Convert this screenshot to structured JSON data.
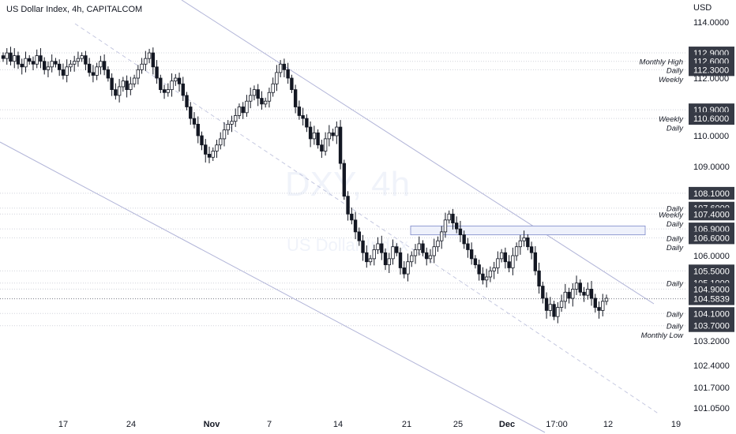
{
  "header": {
    "title": "US Dollar Index, 4h, CAPITALCOM",
    "currency": "USD"
  },
  "watermark": {
    "symbol": "DXY, 4h",
    "name": "US Dollar Index"
  },
  "chart_data": {
    "type": "candlestick",
    "title": "US Dollar Index, 4h, CAPITALCOM",
    "ylabel": "USD",
    "ylim": [
      100.9,
      114.2
    ],
    "grid": false,
    "y_ticks": [
      "114.0000",
      "112.0000",
      "110.0000",
      "109.0000",
      "106.0000",
      "103.2000",
      "102.4000",
      "101.7000",
      "101.0500"
    ],
    "x_ticks": [
      "17",
      "24",
      "Nov",
      "7",
      "14",
      "21",
      "25",
      "Dec",
      "17:00",
      "12",
      "19"
    ],
    "levels": [
      {
        "value": 112.9,
        "label": "112.9000",
        "tags": []
      },
      {
        "value": 112.6,
        "label": "112.6000",
        "tags": [
          "Monthly High"
        ]
      },
      {
        "value": 112.3,
        "label": "112.3000",
        "tags": [
          "Daily",
          "Weekly"
        ]
      },
      {
        "value": 110.9,
        "label": "110.9000",
        "tags": []
      },
      {
        "value": 110.6,
        "label": "110.6000",
        "tags": [
          "Weekly",
          "Daily"
        ]
      },
      {
        "value": 108.1,
        "label": "108.1000",
        "tags": []
      },
      {
        "value": 107.6,
        "label": "107.6000",
        "tags": [
          "Daily"
        ]
      },
      {
        "value": 107.4,
        "label": "107.4000",
        "tags": [
          "Weekly",
          "Daily"
        ]
      },
      {
        "value": 106.9,
        "label": "106.9000",
        "tags": []
      },
      {
        "value": 106.6,
        "label": "106.6000",
        "tags": [
          "Daily",
          "Daily"
        ]
      },
      {
        "value": 105.5,
        "label": "105.5000",
        "tags": []
      },
      {
        "value": 105.1,
        "label": "105.1000",
        "tags": [
          "Daily"
        ]
      },
      {
        "value": 104.9,
        "label": "104.9000",
        "tags": []
      },
      {
        "value": 104.1,
        "label": "104.1000",
        "tags": [
          "Daily"
        ]
      },
      {
        "value": 103.7,
        "label": "103.7000",
        "tags": [
          "Daily",
          "Monthly Low"
        ]
      }
    ],
    "last_price": {
      "value": 104.5839,
      "label": "104.5839"
    },
    "zone": {
      "x_start": "21",
      "x_end": "12",
      "y_low": 106.7,
      "y_high": 107.0
    },
    "series_close": [
      112.7,
      112.9,
      112.6,
      112.8,
      112.5,
      112.4,
      112.7,
      112.6,
      112.5,
      112.8,
      112.6,
      112.3,
      112.4,
      112.6,
      112.5,
      112.3,
      112.1,
      112.4,
      112.5,
      112.6,
      112.7,
      112.8,
      112.5,
      112.2,
      112.1,
      112.4,
      112.6,
      112.3,
      112.0,
      111.6,
      111.4,
      111.7,
      111.9,
      111.6,
      111.8,
      112.0,
      112.3,
      112.5,
      112.7,
      112.9,
      112.4,
      112.0,
      111.6,
      111.5,
      111.6,
      111.9,
      112.0,
      111.8,
      111.4,
      111.0,
      110.6,
      110.4,
      110.0,
      109.7,
      109.4,
      109.3,
      109.5,
      109.7,
      109.9,
      110.2,
      110.4,
      110.5,
      110.7,
      111.0,
      110.8,
      111.2,
      111.4,
      111.6,
      111.3,
      111.1,
      111.2,
      111.5,
      111.8,
      112.2,
      112.5,
      112.3,
      112.0,
      111.6,
      111.0,
      110.7,
      110.6,
      110.3,
      109.9,
      110.1,
      109.7,
      109.5,
      109.9,
      110.1,
      110.0,
      110.3,
      109.1,
      108.0,
      107.4,
      107.2,
      106.8,
      106.5,
      106.1,
      105.8,
      105.9,
      106.2,
      106.4,
      106.1,
      105.7,
      105.9,
      106.3,
      106.1,
      105.6,
      105.4,
      105.8,
      106.0,
      106.2,
      106.4,
      106.1,
      105.9,
      106.0,
      106.3,
      106.5,
      106.8,
      107.2,
      107.4,
      107.1,
      106.9,
      106.7,
      106.4,
      106.2,
      105.9,
      105.7,
      105.4,
      105.2,
      105.3,
      105.5,
      105.6,
      105.9,
      106.1,
      105.8,
      105.6,
      106.0,
      106.3,
      106.5,
      106.6,
      106.3,
      106.1,
      105.5,
      105.0,
      104.6,
      104.2,
      104.4,
      104.0,
      104.3,
      104.5,
      104.8,
      104.6,
      104.9,
      105.1,
      104.8,
      104.7,
      104.9,
      104.6,
      104.3,
      104.2,
      104.5,
      104.6
    ]
  }
}
